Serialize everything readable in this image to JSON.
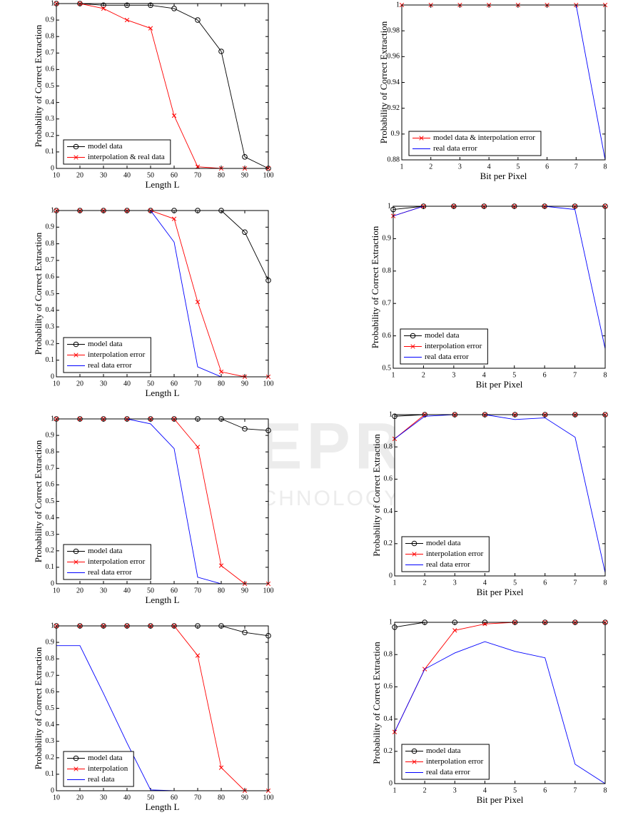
{
  "watermark": {
    "title": "SCITEPRESS",
    "subtitle": "SCIENCE AND TECHNOLOGY PUBLICATIONS"
  },
  "chart_data": [
    {
      "type": "line",
      "xlabel": "Length L",
      "ylabel": "Probability of Correct Extraction",
      "x": [
        10,
        20,
        30,
        40,
        50,
        60,
        70,
        80,
        90,
        100
      ],
      "xlim": [
        10,
        100
      ],
      "xticks": [
        10,
        20,
        30,
        40,
        50,
        60,
        70,
        80,
        90,
        100
      ],
      "ylim": [
        0,
        1
      ],
      "yticks": [
        0,
        0.1,
        0.2,
        0.3,
        0.4,
        0.5,
        0.6,
        0.7,
        0.8,
        0.9,
        1
      ],
      "legend": "lower left",
      "series": [
        {
          "name": "model data",
          "color": "#000000",
          "marker": "o",
          "values": [
            1,
            1,
            0.99,
            0.99,
            0.99,
            0.97,
            0.9,
            0.71,
            0.07,
            0
          ]
        },
        {
          "name": "interpolation & real data",
          "color": "#ff0000",
          "marker": "x",
          "values": [
            1,
            1,
            0.97,
            0.9,
            0.85,
            0.32,
            0.01,
            0,
            0,
            0
          ]
        }
      ]
    },
    {
      "type": "line",
      "xlabel": "Bit per Pixel",
      "ylabel": "Probability of Correct Extraction",
      "x": [
        1,
        2,
        3,
        4,
        5,
        6,
        7,
        8
      ],
      "xlim": [
        1,
        8
      ],
      "xticks": [
        1,
        2,
        3,
        4,
        5,
        6,
        7,
        8
      ],
      "ylim": [
        0.88,
        1
      ],
      "yticks": [
        0.88,
        0.9,
        0.92,
        0.94,
        0.96,
        0.98,
        1
      ],
      "legend": "lower left",
      "series": [
        {
          "name": "model data & interpolation error",
          "color": "#ff0000",
          "marker": "x",
          "values": [
            1,
            1,
            1,
            1,
            1,
            1,
            1,
            1
          ]
        },
        {
          "name": "real data error",
          "color": "#0000ff",
          "marker": "none",
          "values": [
            1,
            1,
            1,
            1,
            1,
            1,
            1,
            0.88
          ]
        }
      ]
    },
    {
      "type": "line",
      "xlabel": "Length L",
      "ylabel": "Probability of Correct Extraction",
      "x": [
        10,
        20,
        30,
        40,
        50,
        60,
        70,
        80,
        90,
        100
      ],
      "xlim": [
        10,
        100
      ],
      "xticks": [
        10,
        20,
        30,
        40,
        50,
        60,
        70,
        80,
        90,
        100
      ],
      "ylim": [
        0,
        1
      ],
      "yticks": [
        0,
        0.1,
        0.2,
        0.3,
        0.4,
        0.5,
        0.6,
        0.7,
        0.8,
        0.9,
        1
      ],
      "legend": "lower left",
      "series": [
        {
          "name": "model data",
          "color": "#000000",
          "marker": "o",
          "values": [
            1,
            1,
            1,
            1,
            1,
            1,
            1,
            1,
            0.87,
            0.58
          ]
        },
        {
          "name": "interpolation error",
          "color": "#ff0000",
          "marker": "x",
          "values": [
            1,
            1,
            1,
            1,
            1,
            0.95,
            0.45,
            0.03,
            0,
            0
          ]
        },
        {
          "name": "real data error",
          "color": "#0000ff",
          "marker": "none",
          "values": [
            1,
            1,
            1,
            1,
            1,
            0.81,
            0.06,
            0,
            0,
            0
          ]
        }
      ]
    },
    {
      "type": "line",
      "xlabel": "Bit per Pixel",
      "ylabel": "Probability of Correct Extraction",
      "x": [
        1,
        2,
        3,
        4,
        5,
        6,
        7,
        8
      ],
      "xlim": [
        1,
        8
      ],
      "xticks": [
        1,
        2,
        3,
        4,
        5,
        6,
        7,
        8
      ],
      "ylim": [
        0.5,
        1
      ],
      "yticks": [
        0.5,
        0.6,
        0.7,
        0.8,
        0.9,
        1
      ],
      "legend": "lower left",
      "series": [
        {
          "name": "model data",
          "color": "#000000",
          "marker": "o",
          "values": [
            0.99,
            1,
            1,
            1,
            1,
            1,
            1,
            1
          ]
        },
        {
          "name": "interpolation error",
          "color": "#ff0000",
          "marker": "x",
          "values": [
            0.97,
            1,
            1,
            1,
            1,
            1,
            1,
            1
          ]
        },
        {
          "name": "real data error",
          "color": "#0000ff",
          "marker": "none",
          "values": [
            0.97,
            1,
            1,
            1,
            1,
            1,
            0.99,
            0.56
          ]
        }
      ]
    },
    {
      "type": "line",
      "xlabel": "Length L",
      "ylabel": "Probability of Correct Extraction",
      "x": [
        10,
        20,
        30,
        40,
        50,
        60,
        70,
        80,
        90,
        100
      ],
      "xlim": [
        10,
        100
      ],
      "xticks": [
        10,
        20,
        30,
        40,
        50,
        60,
        70,
        80,
        90,
        100
      ],
      "ylim": [
        0,
        1
      ],
      "yticks": [
        0,
        0.1,
        0.2,
        0.3,
        0.4,
        0.5,
        0.6,
        0.7,
        0.8,
        0.9,
        1
      ],
      "legend": "lower left",
      "series": [
        {
          "name": "model data",
          "color": "#000000",
          "marker": "o",
          "values": [
            1,
            1,
            1,
            1,
            1,
            1,
            1,
            1,
            0.94,
            0.93
          ]
        },
        {
          "name": "interpolation error",
          "color": "#ff0000",
          "marker": "x",
          "values": [
            1,
            1,
            1,
            1,
            1,
            1,
            0.83,
            0.11,
            0,
            0
          ]
        },
        {
          "name": "real data error",
          "color": "#0000ff",
          "marker": "none",
          "values": [
            1,
            1,
            1,
            1,
            0.97,
            0.82,
            0.04,
            0,
            0,
            0
          ]
        }
      ]
    },
    {
      "type": "line",
      "xlabel": "Bit per Pixel",
      "ylabel": "Probability of Correct Extraction",
      "x": [
        1,
        2,
        3,
        4,
        5,
        6,
        7,
        8
      ],
      "xlim": [
        1,
        8
      ],
      "xticks": [
        1,
        2,
        3,
        4,
        5,
        6,
        7,
        8
      ],
      "ylim": [
        0,
        1
      ],
      "yticks": [
        0,
        0.2,
        0.4,
        0.6,
        0.8,
        1
      ],
      "legend": "lower left",
      "series": [
        {
          "name": "model data",
          "color": "#000000",
          "marker": "o",
          "values": [
            0.99,
            1,
            1,
            1,
            1,
            1,
            1,
            1
          ]
        },
        {
          "name": "interpolation error",
          "color": "#ff0000",
          "marker": "x",
          "values": [
            0.85,
            1,
            1,
            1,
            1,
            1,
            1,
            1
          ]
        },
        {
          "name": "real data error",
          "color": "#0000ff",
          "marker": "none",
          "values": [
            0.85,
            0.99,
            1,
            1,
            0.97,
            0.98,
            0.86,
            0.02
          ]
        }
      ]
    },
    {
      "type": "line",
      "xlabel": "Length L",
      "ylabel": "Probability of Correct Extraction",
      "x": [
        10,
        20,
        30,
        40,
        50,
        60,
        70,
        80,
        90,
        100
      ],
      "xlim": [
        10,
        100
      ],
      "xticks": [
        10,
        20,
        30,
        40,
        50,
        60,
        70,
        80,
        90,
        100
      ],
      "ylim": [
        0,
        1
      ],
      "yticks": [
        0,
        0.1,
        0.2,
        0.3,
        0.4,
        0.5,
        0.6,
        0.7,
        0.8,
        0.9,
        1
      ],
      "legend": "lower left",
      "series": [
        {
          "name": "model data",
          "color": "#000000",
          "marker": "o",
          "values": [
            1,
            1,
            1,
            1,
            1,
            1,
            1,
            1,
            0.96,
            0.94
          ]
        },
        {
          "name": "interpolation",
          "color": "#ff0000",
          "marker": "x",
          "values": [
            1,
            1,
            1,
            1,
            1,
            1,
            0.82,
            0.14,
            0,
            0
          ]
        },
        {
          "name": "real data",
          "color": "#0000ff",
          "marker": "none",
          "values": [
            0.88,
            0.88,
            0.59,
            0.29,
            0.005,
            0,
            0,
            0,
            0,
            0
          ]
        }
      ]
    },
    {
      "type": "line",
      "xlabel": "Bit per Pixel",
      "ylabel": "Probability of Correct Extraction",
      "x": [
        1,
        2,
        3,
        4,
        5,
        6,
        7,
        8
      ],
      "xlim": [
        1,
        8
      ],
      "xticks": [
        1,
        2,
        3,
        4,
        5,
        6,
        7,
        8
      ],
      "ylim": [
        0,
        1
      ],
      "yticks": [
        0,
        0.2,
        0.4,
        0.6,
        0.8,
        1
      ],
      "legend": "lower left",
      "series": [
        {
          "name": "model data",
          "color": "#000000",
          "marker": "o",
          "values": [
            0.97,
            1,
            1,
            1,
            1,
            1,
            1,
            1
          ]
        },
        {
          "name": "interpolation error",
          "color": "#ff0000",
          "marker": "x",
          "values": [
            0.32,
            0.71,
            0.95,
            0.99,
            1,
            1,
            1,
            1
          ]
        },
        {
          "name": "real data error",
          "color": "#0000ff",
          "marker": "none",
          "values": [
            0.32,
            0.71,
            0.81,
            0.88,
            0.82,
            0.78,
            0.12,
            0
          ]
        }
      ]
    }
  ]
}
